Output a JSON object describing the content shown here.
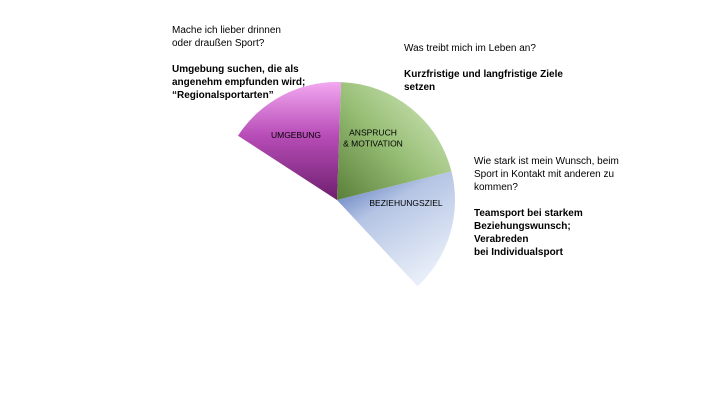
{
  "segments": [
    {
      "label_lines": [
        "UMGEBUNG"
      ],
      "color_light": "#f2a8f0",
      "color_mid": "#b84db8",
      "color_dark": "#6e1f6e"
    },
    {
      "label_lines": [
        "ANSPRUCH",
        "& MOTIVATION"
      ],
      "color_light": "#dcefc8",
      "color_mid": "#96bd74",
      "color_dark": "#5a7f3a"
    },
    {
      "label_lines": [
        "BEZIEHUNGSZIEL"
      ],
      "color_light": "#e8eef8",
      "color_mid": "#b4c4e4",
      "color_dark": "#4a6ab4"
    }
  ],
  "umgebung": {
    "question_line1": "Mache ich lieber drinnen",
    "question_line2": "oder draußen Sport?",
    "answer_line1": "Umgebung suchen, die als",
    "answer_line2": "angenehm empfunden wird;",
    "answer_line3": "“Regionalsportarten”"
  },
  "anspruch": {
    "question_line1": "Was treibt mich im Leben an?",
    "answer_line1": "Kurzfristige und langfristige Ziele",
    "answer_line2": "setzen"
  },
  "beziehung": {
    "question_line1": "Wie stark ist mein Wunsch, beim",
    "question_line2": "Sport in Kontakt mit anderen zu",
    "question_line3": "kommen?",
    "answer_line1": "Teamsport bei starkem",
    "answer_line2": "Beziehungswunsch; Verabreden",
    "answer_line3": "bei Individualsport"
  }
}
